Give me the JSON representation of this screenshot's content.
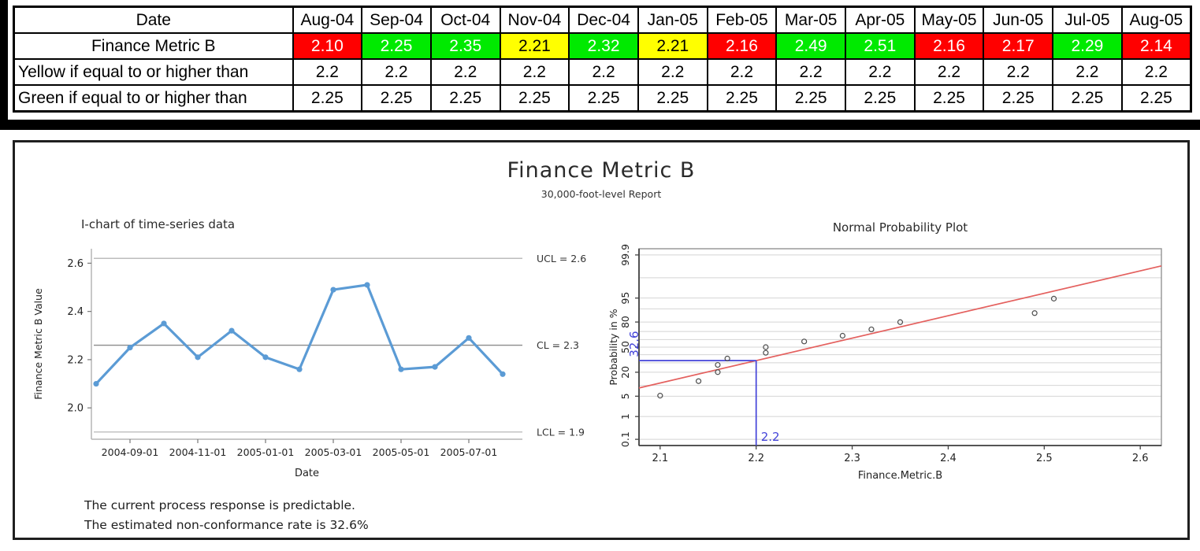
{
  "table": {
    "date_header": "Date",
    "months": [
      "Aug-04",
      "Sep-04",
      "Oct-04",
      "Nov-04",
      "Dec-04",
      "Jan-05",
      "Feb-05",
      "Mar-05",
      "Apr-05",
      "May-05",
      "Jun-05",
      "Jul-05",
      "Aug-05"
    ],
    "metric_row_label": "Finance Metric B",
    "metric_values": [
      {
        "value": "2.10",
        "status": "red"
      },
      {
        "value": "2.25",
        "status": "green"
      },
      {
        "value": "2.35",
        "status": "green"
      },
      {
        "value": "2.21",
        "status": "yellow"
      },
      {
        "value": "2.32",
        "status": "green"
      },
      {
        "value": "2.21",
        "status": "yellow"
      },
      {
        "value": "2.16",
        "status": "red"
      },
      {
        "value": "2.49",
        "status": "green"
      },
      {
        "value": "2.51",
        "status": "green"
      },
      {
        "value": "2.16",
        "status": "red"
      },
      {
        "value": "2.17",
        "status": "red"
      },
      {
        "value": "2.29",
        "status": "green"
      },
      {
        "value": "2.14",
        "status": "red"
      }
    ],
    "yellow_row_label": "Yellow if equal to or higher than",
    "yellow_threshold": "2.2",
    "green_row_label": "Green if equal to or higher than",
    "green_threshold": "2.25"
  },
  "report": {
    "title": "Finance Metric B",
    "subtitle": "30,000-foot-level Report",
    "footer_line1": "The current process response is predictable.",
    "footer_line2": "The estimated non-conformance rate is 32.6%"
  },
  "colors": {
    "status": {
      "red": "#ff0000",
      "green": "#00ea00",
      "yellow": "#ffff00"
    },
    "status_text": {
      "red": "#ffffff",
      "green": "#ffffff",
      "yellow": "#000000"
    },
    "series_blue": "#5b9bd5",
    "fit_red": "#e4605e",
    "annotation_blue": "#4343d9",
    "grid_gray": "#d4d4d4",
    "control_gray": "#bdbdbd",
    "center_gray": "#8c8c8c"
  },
  "chart_data": [
    {
      "type": "line",
      "title": "I-chart of time-series data",
      "xlabel": "Date",
      "ylabel": "Finance Metric B Value",
      "values": [
        2.1,
        2.25,
        2.35,
        2.21,
        2.32,
        2.21,
        2.16,
        2.49,
        2.51,
        2.16,
        2.17,
        2.29,
        2.14
      ],
      "x_tick_indices": [
        1,
        3,
        5,
        7,
        9,
        11
      ],
      "x_tick_labels": [
        "2004-09-01",
        "2004-11-01",
        "2005-01-01",
        "2005-03-01",
        "2005-05-01",
        "2005-07-01"
      ],
      "y_ticks": [
        2.0,
        2.2,
        2.4,
        2.6
      ],
      "ylim": [
        1.87,
        2.66
      ],
      "grid": false,
      "control_lines": [
        {
          "name": "UCL",
          "label": "UCL = 2.6",
          "value": 2.62
        },
        {
          "name": "CL",
          "label": "CL = 2.3",
          "value": 2.26
        },
        {
          "name": "LCL",
          "label": "LCL = 1.9",
          "value": 1.9
        }
      ]
    },
    {
      "type": "scatter",
      "title": "Normal Probability Plot",
      "xlabel": "Finance.Metric.B",
      "ylabel": "Probability in %",
      "y_scale": "normal-probit",
      "x_ticks": [
        2.1,
        2.2,
        2.3,
        2.4,
        2.5,
        2.6
      ],
      "xlim": [
        2.078,
        2.622
      ],
      "y_tick_labels": [
        0.1,
        1,
        5,
        20,
        50,
        80,
        95,
        99.9
      ],
      "gridline_percents": [
        0.1,
        1,
        5,
        10,
        20,
        30,
        40,
        50,
        60,
        70,
        80,
        90,
        95,
        99,
        99.9
      ],
      "points": [
        {
          "x": 2.1,
          "p": 5.2
        },
        {
          "x": 2.14,
          "p": 12.7
        },
        {
          "x": 2.16,
          "p": 20.1
        },
        {
          "x": 2.16,
          "p": 27.6
        },
        {
          "x": 2.17,
          "p": 35.1
        },
        {
          "x": 2.21,
          "p": 42.5
        },
        {
          "x": 2.21,
          "p": 50.0
        },
        {
          "x": 2.25,
          "p": 57.5
        },
        {
          "x": 2.29,
          "p": 64.9
        },
        {
          "x": 2.32,
          "p": 72.4
        },
        {
          "x": 2.35,
          "p": 79.9
        },
        {
          "x": 2.49,
          "p": 87.3
        },
        {
          "x": 2.51,
          "p": 94.8
        }
      ],
      "fit_line": {
        "mean": 2.26,
        "sd": 0.133
      },
      "annotation": {
        "x_value": 2.2,
        "x_label": "2.2",
        "p_value": 32.6,
        "p_label": "32.6"
      }
    }
  ]
}
